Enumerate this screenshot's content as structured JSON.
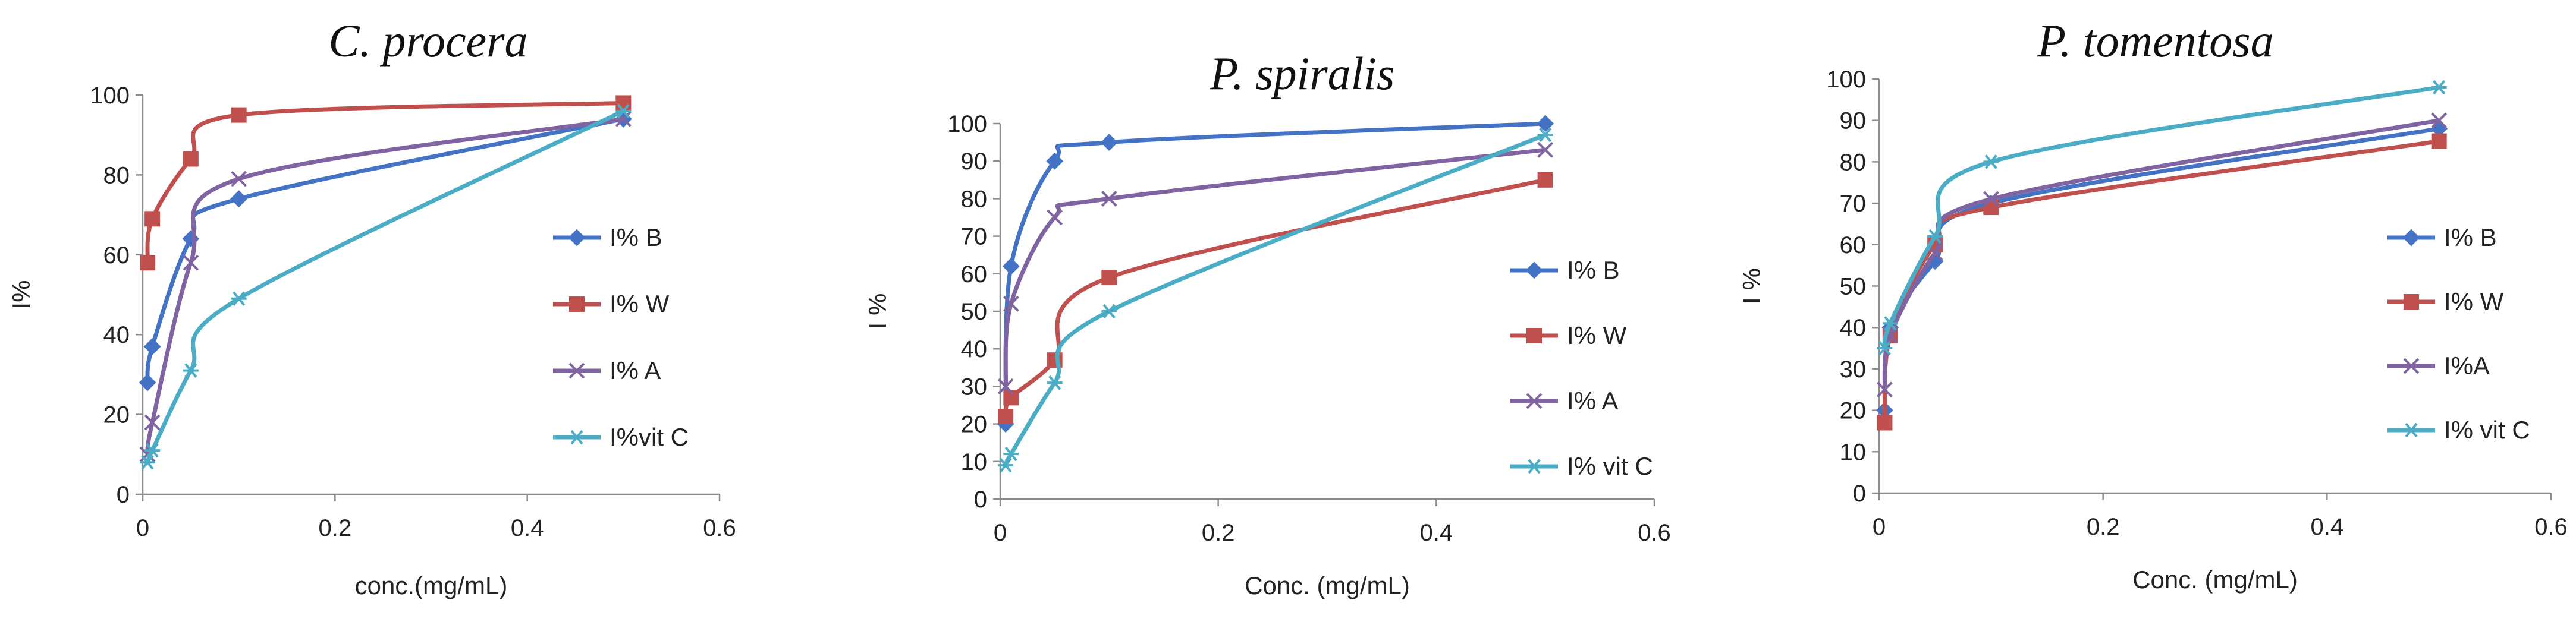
{
  "chart_data": [
    {
      "type": "line",
      "title": "C. procera",
      "xlabel": "conc.(mg/mL)",
      "ylabel": "I%",
      "xlim": [
        0,
        0.6
      ],
      "ylim": [
        0,
        100
      ],
      "xticks": [
        0,
        0.2,
        0.4,
        0.6
      ],
      "xtick_labels": [
        "0",
        "0.2",
        "0.4",
        "0.6"
      ],
      "yticks": [
        0,
        20,
        40,
        60,
        80,
        100
      ],
      "ytick_labels": [
        "0",
        "20",
        "40",
        "60",
        "80",
        "100"
      ],
      "x": [
        0.005,
        0.01,
        0.05,
        0.1,
        0.5
      ],
      "legend_position": "right",
      "series": [
        {
          "name": "I% B",
          "values": [
            28,
            37,
            64,
            74,
            94
          ],
          "color": "#4472C4",
          "marker": "diamond"
        },
        {
          "name": "I% W",
          "values": [
            58,
            69,
            84,
            95,
            98
          ],
          "color": "#C0504D",
          "marker": "square"
        },
        {
          "name": "I% A",
          "values": [
            10,
            18,
            58,
            79,
            94
          ],
          "color": "#8064A2",
          "marker": "x"
        },
        {
          "name": "I%vit C",
          "values": [
            8,
            11,
            31,
            49,
            96
          ],
          "color": "#4BACC6",
          "marker": "star"
        }
      ]
    },
    {
      "type": "line",
      "title": "P. spiralis",
      "xlabel": "Conc. (mg/mL)",
      "ylabel": "I %",
      "xlim": [
        0,
        0.6
      ],
      "ylim": [
        0,
        100
      ],
      "xticks": [
        0,
        0.2,
        0.4,
        0.6
      ],
      "xtick_labels": [
        "0",
        "0.2",
        "0.4",
        "0.6"
      ],
      "yticks": [
        0,
        10,
        20,
        30,
        40,
        50,
        60,
        70,
        80,
        90,
        100
      ],
      "ytick_labels": [
        "0",
        "10",
        "20",
        "30",
        "40",
        "50",
        "60",
        "70",
        "80",
        "90",
        "100"
      ],
      "x": [
        0.005,
        0.01,
        0.05,
        0.1,
        0.5
      ],
      "legend_position": "right",
      "series": [
        {
          "name": "I% B",
          "values": [
            20,
            62,
            90,
            95,
            100
          ],
          "color": "#4472C4",
          "marker": "diamond"
        },
        {
          "name": "I% W",
          "values": [
            22,
            27,
            37,
            59,
            85
          ],
          "color": "#C0504D",
          "marker": "square"
        },
        {
          "name": "I% A",
          "values": [
            30,
            52,
            75,
            80,
            93
          ],
          "color": "#8064A2",
          "marker": "x"
        },
        {
          "name": "I% vit C",
          "values": [
            9,
            12,
            31,
            50,
            97
          ],
          "color": "#4BACC6",
          "marker": "star"
        }
      ]
    },
    {
      "type": "line",
      "title": "P. tomentosa",
      "xlabel": "Conc. (mg/mL)",
      "ylabel": "I %",
      "xlim": [
        0,
        0.6
      ],
      "ylim": [
        0,
        100
      ],
      "xticks": [
        0,
        0.2,
        0.4,
        0.6
      ],
      "xtick_labels": [
        "0",
        "0.2",
        "0.4",
        "0.6"
      ],
      "yticks": [
        0,
        10,
        20,
        30,
        40,
        50,
        60,
        70,
        80,
        90,
        100
      ],
      "ytick_labels": [
        "0",
        "10",
        "20",
        "30",
        "40",
        "50",
        "60",
        "70",
        "80",
        "90",
        "100"
      ],
      "x": [
        0.005,
        0.01,
        0.05,
        0.1,
        0.5
      ],
      "legend_position": "right",
      "series": [
        {
          "name": "I% B",
          "values": [
            20,
            40,
            56,
            70,
            88
          ],
          "color": "#4472C4",
          "marker": "diamond"
        },
        {
          "name": "I% W",
          "values": [
            17,
            38,
            60,
            69,
            85
          ],
          "color": "#C0504D",
          "marker": "square"
        },
        {
          "name": "I%A",
          "values": [
            25,
            38,
            58,
            71,
            90
          ],
          "color": "#8064A2",
          "marker": "x"
        },
        {
          "name": "I% vit C",
          "values": [
            35,
            41,
            62,
            80,
            98
          ],
          "color": "#4BACC6",
          "marker": "star"
        }
      ]
    }
  ]
}
